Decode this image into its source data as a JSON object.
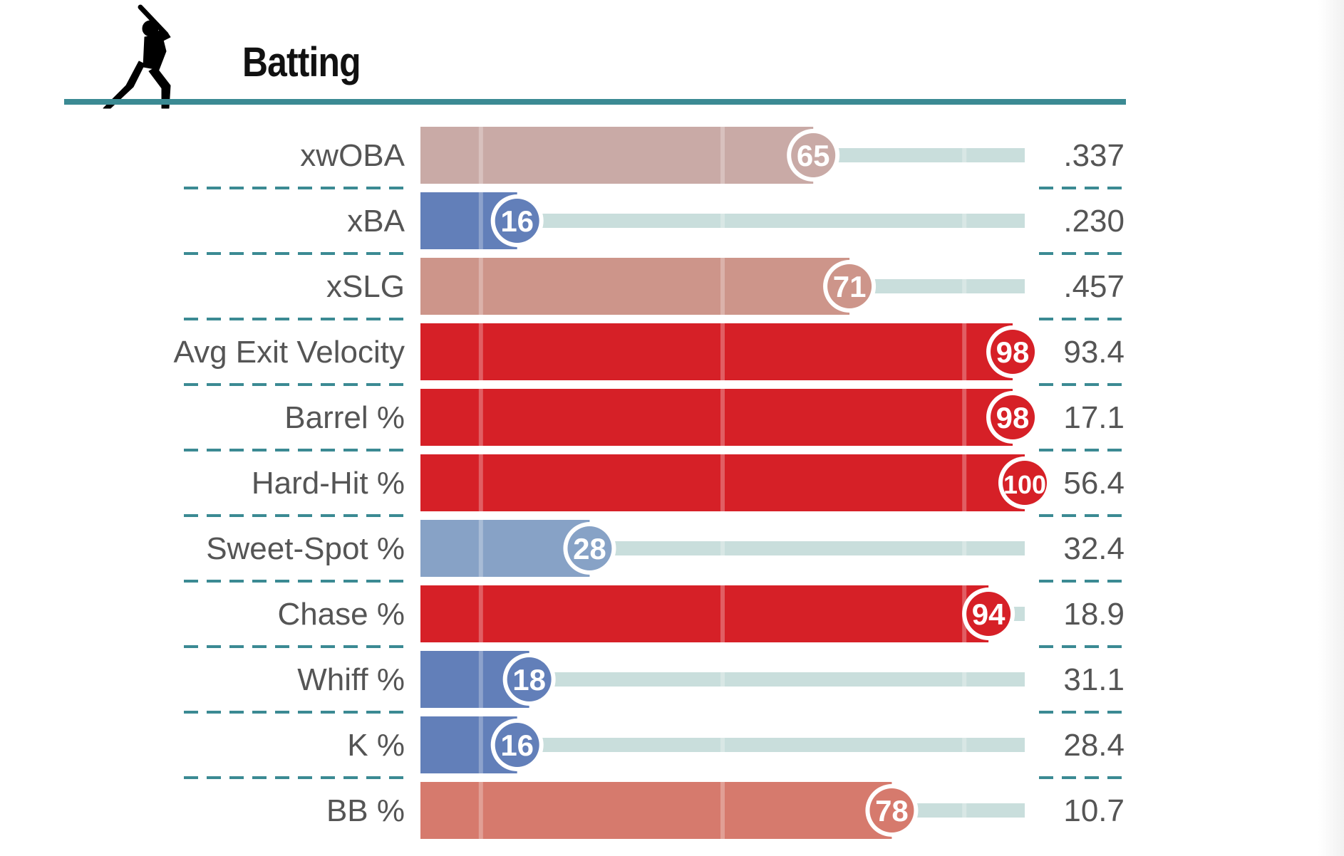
{
  "section": {
    "title": "Batting",
    "icon": "batter-silhouette-icon"
  },
  "colors": {
    "rule": "#3b8a93",
    "divider": "#3b8a93",
    "track": "#c9dedc",
    "label": "#555555"
  },
  "chart_data": {
    "type": "bar",
    "orientation": "horizontal",
    "title": "Batting",
    "xlim": [
      0,
      100
    ],
    "value_kind": "percentile",
    "rows": [
      {
        "label": "xwOBA",
        "percentile": 65,
        "value": ".337",
        "color": "#c9aaa6"
      },
      {
        "label": "xBA",
        "percentile": 16,
        "value": ".230",
        "color": "#627fb9"
      },
      {
        "label": "xSLG",
        "percentile": 71,
        "value": ".457",
        "color": "#cd958a"
      },
      {
        "label": "Avg Exit Velocity",
        "percentile": 98,
        "value": "93.4",
        "color": "#d62027"
      },
      {
        "label": "Barrel %",
        "percentile": 98,
        "value": "17.1",
        "color": "#d62027"
      },
      {
        "label": "Hard-Hit %",
        "percentile": 100,
        "value": "56.4",
        "color": "#d62027"
      },
      {
        "label": "Sweet-Spot %",
        "percentile": 28,
        "value": "32.4",
        "color": "#87a2c6"
      },
      {
        "label": "Chase %",
        "percentile": 94,
        "value": "18.9",
        "color": "#d62027"
      },
      {
        "label": "Whiff %",
        "percentile": 18,
        "value": "31.1",
        "color": "#627fb9"
      },
      {
        "label": "K %",
        "percentile": 16,
        "value": "28.4",
        "color": "#627fb9"
      },
      {
        "label": "BB %",
        "percentile": 78,
        "value": "10.7",
        "color": "#d67a6d"
      }
    ]
  }
}
